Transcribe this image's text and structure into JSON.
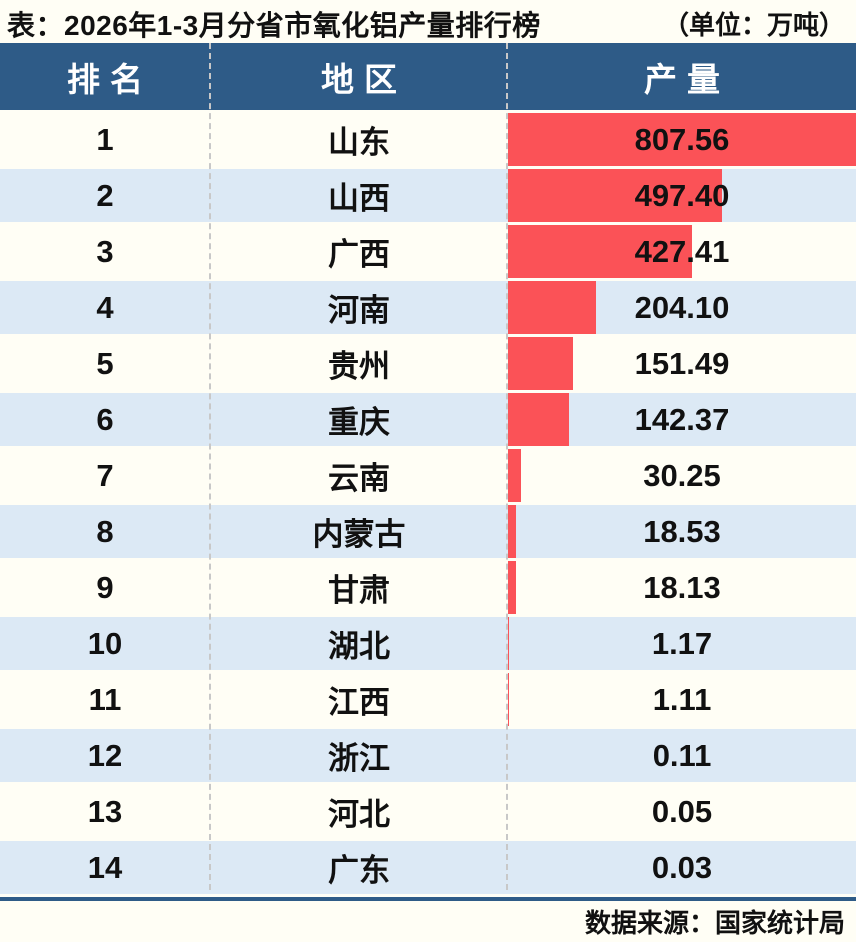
{
  "title": "表：2026年1-3月分省市氧化铝产量排行榜",
  "unit_label": "（单位：万吨）",
  "source_label": "数据来源：国家统计局",
  "table": {
    "headers": {
      "rank": "排名",
      "region": "地区",
      "value": "产量"
    },
    "rows": [
      {
        "rank": "1",
        "region": "山东",
        "value": "807.56"
      },
      {
        "rank": "2",
        "region": "山西",
        "value": "497.40"
      },
      {
        "rank": "3",
        "region": "广西",
        "value": "427.41"
      },
      {
        "rank": "4",
        "region": "河南",
        "value": "204.10"
      },
      {
        "rank": "5",
        "region": "贵州",
        "value": "151.49"
      },
      {
        "rank": "6",
        "region": "重庆",
        "value": "142.37"
      },
      {
        "rank": "7",
        "region": "云南",
        "value": "30.25"
      },
      {
        "rank": "8",
        "region": "内蒙古",
        "value": "18.53"
      },
      {
        "rank": "9",
        "region": "甘肃",
        "value": "18.13"
      },
      {
        "rank": "10",
        "region": "湖北",
        "value": "1.17"
      },
      {
        "rank": "11",
        "region": "江西",
        "value": "1.11"
      },
      {
        "rank": "12",
        "region": "浙江",
        "value": "0.11"
      },
      {
        "rank": "13",
        "region": "河北",
        "value": "0.05"
      },
      {
        "rank": "14",
        "region": "广东",
        "value": "0.03"
      }
    ]
  },
  "chart_data": {
    "type": "bar",
    "orientation": "horizontal",
    "title": "2026年1-3月分省市氧化铝产量排行榜",
    "unit": "万吨",
    "categories": [
      "山东",
      "山西",
      "广西",
      "河南",
      "贵州",
      "重庆",
      "云南",
      "内蒙古",
      "甘肃",
      "湖北",
      "江西",
      "浙江",
      "河北",
      "广东"
    ],
    "values": [
      807.56,
      497.4,
      427.41,
      204.1,
      151.49,
      142.37,
      30.25,
      18.53,
      18.13,
      1.17,
      1.11,
      0.11,
      0.05,
      0.03
    ],
    "xlim": [
      0,
      807.56
    ],
    "legend": false,
    "grid": false,
    "source": "国家统计局"
  },
  "colors": {
    "header_bg": "#2E5B87",
    "row_alt_bg": "#DCE9F5",
    "bar": "#FB5257",
    "page_bg": "#FFFEF5",
    "bottom_border": "#2E5B87",
    "header_text": "#FFFFFF",
    "body_text": "#111111"
  }
}
